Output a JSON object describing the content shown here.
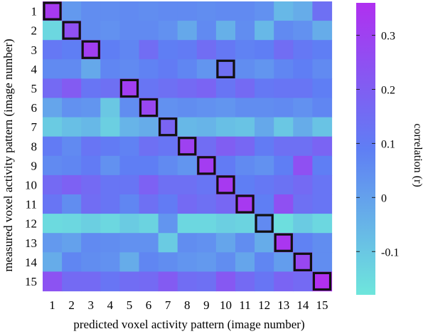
{
  "chart_data": {
    "type": "heatmap",
    "xlabel": "predicted voxel activity pattern (image number)",
    "ylabel": "measured voxel activity pattern (image number)",
    "x_categories": [
      "1",
      "2",
      "3",
      "4",
      "5",
      "6",
      "7",
      "8",
      "9",
      "10",
      "11",
      "12",
      "13",
      "14",
      "15"
    ],
    "y_categories": [
      "1",
      "2",
      "3",
      "4",
      "5",
      "6",
      "7",
      "8",
      "9",
      "10",
      "11",
      "12",
      "13",
      "14",
      "15"
    ],
    "values": [
      [
        0.33,
        0.02,
        0.05,
        0.05,
        0.06,
        0.05,
        0.06,
        0.06,
        0.05,
        0.06,
        0.06,
        0.04,
        -0.06,
        -0.03,
        0.14
      ],
      [
        -0.14,
        0.25,
        0.05,
        0.04,
        0.06,
        0.06,
        0.04,
        -0.02,
        0.06,
        -0.04,
        0.05,
        -0.06,
        0.06,
        0.04,
        -0.03
      ],
      [
        0.11,
        0.09,
        0.31,
        0.09,
        0.07,
        0.15,
        0.09,
        0.1,
        0.15,
        0.11,
        0.08,
        0.09,
        0.15,
        0.11,
        0.09
      ],
      [
        0.06,
        0.06,
        -0.02,
        0.07,
        0.06,
        0.08,
        0.1,
        0.07,
        0.03,
        0.14,
        0.05,
        0.03,
        0.07,
        0.09,
        0.06
      ],
      [
        0.16,
        0.21,
        0.12,
        0.14,
        0.31,
        0.12,
        0.14,
        0.16,
        0.18,
        0.12,
        0.16,
        0.11,
        0.12,
        0.12,
        0.09
      ],
      [
        -0.01,
        0.04,
        0.03,
        -0.1,
        0.05,
        0.28,
        0.04,
        0.05,
        0.04,
        0.03,
        0.05,
        0.05,
        0.06,
        0.04,
        0.07
      ],
      [
        -0.11,
        -0.08,
        -0.06,
        -0.12,
        -0.05,
        -0.03,
        0.18,
        -0.06,
        -0.05,
        -0.08,
        -0.09,
        -0.02,
        -0.1,
        -0.03,
        -0.09
      ],
      [
        0.1,
        0.06,
        0.12,
        0.1,
        0.08,
        0.14,
        0.12,
        0.3,
        0.15,
        0.2,
        0.17,
        0.1,
        0.14,
        0.14,
        0.18
      ],
      [
        0.06,
        0.07,
        0.1,
        0.04,
        0.09,
        0.09,
        0.06,
        0.03,
        0.32,
        0.1,
        0.06,
        0.04,
        0.09,
        0.25,
        0.09
      ],
      [
        0.16,
        0.19,
        0.16,
        0.12,
        0.12,
        0.19,
        0.14,
        0.14,
        0.12,
        0.33,
        0.09,
        0.11,
        0.13,
        0.16,
        0.12
      ],
      [
        0.12,
        0.05,
        0.15,
        0.12,
        0.07,
        0.14,
        0.1,
        0.16,
        0.14,
        0.17,
        0.33,
        0.09,
        0.25,
        0.14,
        0.12
      ],
      [
        -0.15,
        -0.14,
        -0.12,
        -0.14,
        -0.11,
        -0.13,
        0.03,
        -0.14,
        -0.14,
        -0.12,
        -0.13,
        0.06,
        -0.16,
        -0.11,
        -0.14
      ],
      [
        0.02,
        0.0,
        0.06,
        0.05,
        0.04,
        0.04,
        -0.11,
        0.05,
        0.04,
        -0.01,
        0.05,
        -0.03,
        0.34,
        0.08,
        0.05
      ],
      [
        -0.03,
        0.07,
        0.05,
        0.04,
        -0.03,
        0.07,
        0.05,
        0.03,
        0.02,
        0.05,
        -0.01,
        0.07,
        0.01,
        0.28,
        0.05
      ],
      [
        0.24,
        0.16,
        0.16,
        0.12,
        0.15,
        0.16,
        0.21,
        0.15,
        0.14,
        0.22,
        0.16,
        0.12,
        0.18,
        0.16,
        0.36
      ]
    ],
    "highlighted_cells": [
      [
        1,
        1
      ],
      [
        2,
        2
      ],
      [
        3,
        3
      ],
      [
        4,
        10
      ],
      [
        5,
        5
      ],
      [
        6,
        6
      ],
      [
        7,
        7
      ],
      [
        8,
        8
      ],
      [
        9,
        9
      ],
      [
        10,
        10
      ],
      [
        11,
        11
      ],
      [
        12,
        12
      ],
      [
        13,
        13
      ],
      [
        14,
        14
      ],
      [
        15,
        15
      ]
    ],
    "colorbar": {
      "label": "correlation (r)",
      "min": -0.18,
      "max": 0.36,
      "ticks": [
        "-0.1",
        "0",
        "0.1",
        "0.2",
        "0.3"
      ],
      "tick_values": [
        -0.1,
        0,
        0.1,
        0.2,
        0.3
      ],
      "color_low": "#6ee6dc",
      "color_mid": "#5f7ef4",
      "color_high": "#b030f0"
    }
  }
}
